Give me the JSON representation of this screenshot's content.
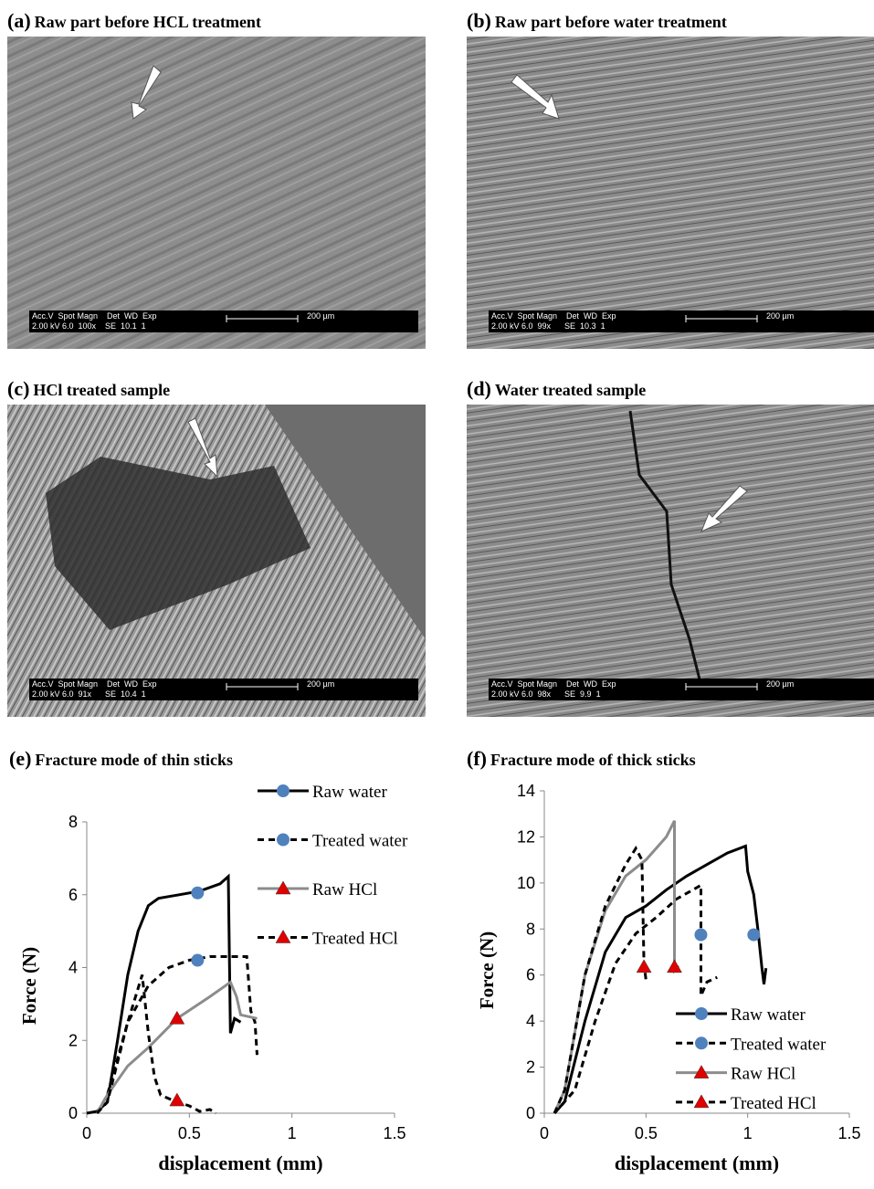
{
  "panels": [
    {
      "label": "(a)",
      "title": "Raw part before HCL treatment",
      "info_top": "Acc.V  Spot Magn    Det  WD  Exp",
      "scale": "200 µm",
      "info_bottom": "2.00 kV 6.0  100x    SE  10.1  1"
    },
    {
      "label": "(b)",
      "title": "Raw part before water treatment",
      "info_top": "Acc.V  Spot Magn    Det  WD  Exp",
      "scale": "200 µm",
      "info_bottom": "2.00 kV 6.0  99x      SE  10.3  1"
    },
    {
      "label": "(c)",
      "title": "HCl treated sample",
      "info_top": "Acc.V  Spot Magn    Det  WD  Exp",
      "scale": "200 µm",
      "info_bottom": "2.00 kV 6.0  91x      SE  10.4  1"
    },
    {
      "label": "(d)",
      "title": "Water treated sample",
      "info_top": "Acc.V  Spot Magn    Det  WD  Exp",
      "scale": "200 µm",
      "info_bottom": "2.00 kV 6.0  98x      SE  9.9  1"
    }
  ],
  "chart_data": [
    {
      "type": "line",
      "label": "(e)",
      "title": "Fracture mode of thin sticks",
      "xlabel": "displacement (mm)",
      "ylabel": "Force (N)",
      "xlim": [
        0,
        1.5
      ],
      "xticks": [
        0,
        0.5,
        1,
        1.5
      ],
      "ylim": [
        0,
        8
      ],
      "yticks": [
        0,
        2,
        4,
        6,
        8
      ],
      "legend": "upper right",
      "series": [
        {
          "name": "Raw water",
          "color": "#000000",
          "dashed": false,
          "marker": "circle",
          "marker_color": "#4f81bd",
          "marker_x": 0.54,
          "marker_y": 6.05,
          "x": [
            0,
            0.05,
            0.1,
            0.15,
            0.2,
            0.25,
            0.3,
            0.35,
            0.45,
            0.55,
            0.65,
            0.69,
            0.7,
            0.72,
            0.75
          ],
          "values": [
            0,
            0.05,
            0.3,
            2,
            3.8,
            5,
            5.7,
            5.9,
            6,
            6.1,
            6.3,
            6.5,
            2.2,
            2.6,
            2.5
          ]
        },
        {
          "name": "Treated water",
          "color": "#000000",
          "dashed": true,
          "marker": "circle",
          "marker_color": "#4f81bd",
          "marker_x": 0.54,
          "marker_y": 4.2,
          "x": [
            0.05,
            0.1,
            0.2,
            0.3,
            0.4,
            0.5,
            0.6,
            0.78,
            0.8,
            0.82,
            0.83
          ],
          "values": [
            0,
            0.5,
            2.5,
            3.5,
            4,
            4.2,
            4.3,
            4.3,
            2.8,
            2.5,
            1.6
          ]
        },
        {
          "name": "Raw HCl",
          "color": "#8c8c8c",
          "dashed": false,
          "marker": "triangle",
          "marker_color": "#e00000",
          "marker_x": 0.44,
          "marker_y": 2.6,
          "x": [
            0.05,
            0.1,
            0.2,
            0.3,
            0.44,
            0.6,
            0.7,
            0.73,
            0.75,
            0.83
          ],
          "values": [
            0,
            0.5,
            1.3,
            1.8,
            2.6,
            3.2,
            3.6,
            3.2,
            2.7,
            2.6
          ]
        },
        {
          "name": "Treated HCl",
          "color": "#000000",
          "dashed": true,
          "marker": "triangle",
          "marker_color": "#e00000",
          "marker_x": 0.44,
          "marker_y": 0.35,
          "x": [
            0.05,
            0.1,
            0.2,
            0.27,
            0.3,
            0.33,
            0.36,
            0.42,
            0.5,
            0.55,
            0.6,
            0.63
          ],
          "values": [
            0,
            0.3,
            2.5,
            3.8,
            2.2,
            1,
            0.5,
            0.35,
            0.2,
            0.05,
            0.1,
            0
          ]
        }
      ]
    },
    {
      "type": "line",
      "label": "(f)",
      "title": "Fracture mode of thick sticks",
      "xlabel": "displacement (mm)",
      "ylabel": "Force (N)",
      "xlim": [
        0,
        1.5
      ],
      "xticks": [
        0,
        0.5,
        1,
        1.5
      ],
      "ylim": [
        0,
        14
      ],
      "yticks": [
        0,
        2,
        4,
        6,
        8,
        10,
        12,
        14
      ],
      "legend": "lower right",
      "series": [
        {
          "name": "Raw water",
          "color": "#000000",
          "dashed": false,
          "marker": "circle",
          "marker_color": "#4f81bd",
          "marker_x": 1.03,
          "marker_y": 7.75,
          "x": [
            0.05,
            0.1,
            0.2,
            0.3,
            0.4,
            0.5,
            0.6,
            0.7,
            0.8,
            0.9,
            0.99,
            1.0,
            1.03,
            1.05,
            1.07,
            1.08,
            1.09
          ],
          "values": [
            0,
            0.5,
            4,
            7,
            8.5,
            9,
            9.7,
            10.3,
            10.8,
            11.3,
            11.6,
            10.5,
            9.5,
            8,
            6.3,
            5.6,
            6.3
          ]
        },
        {
          "name": "Treated water",
          "color": "#000000",
          "dashed": true,
          "marker": "circle",
          "marker_color": "#4f81bd",
          "marker_x": 0.77,
          "marker_y": 7.75,
          "x": [
            0.05,
            0.15,
            0.25,
            0.35,
            0.45,
            0.55,
            0.65,
            0.77,
            0.77,
            0.8,
            0.85
          ],
          "values": [
            0,
            1,
            4,
            6.5,
            7.8,
            8.5,
            9.3,
            9.9,
            5.1,
            5.7,
            5.9
          ]
        },
        {
          "name": "Raw HCl",
          "color": "#8c8c8c",
          "dashed": false,
          "marker": "triangle",
          "marker_color": "#e00000",
          "marker_x": 0.64,
          "marker_y": 6.35,
          "x": [
            0.05,
            0.1,
            0.2,
            0.3,
            0.4,
            0.5,
            0.6,
            0.64,
            0.64,
            0.66
          ],
          "values": [
            0,
            1,
            6,
            8.8,
            10.3,
            11,
            12,
            12.7,
            6.2,
            6.4
          ]
        },
        {
          "name": "Treated HCl",
          "color": "#000000",
          "dashed": true,
          "marker": "triangle",
          "marker_color": "#e00000",
          "marker_x": 0.49,
          "marker_y": 6.35,
          "x": [
            0.05,
            0.1,
            0.2,
            0.3,
            0.4,
            0.45,
            0.48,
            0.49,
            0.5
          ],
          "values": [
            0,
            1,
            6,
            9,
            10.8,
            11.5,
            11,
            6.5,
            5.8
          ]
        }
      ]
    }
  ]
}
